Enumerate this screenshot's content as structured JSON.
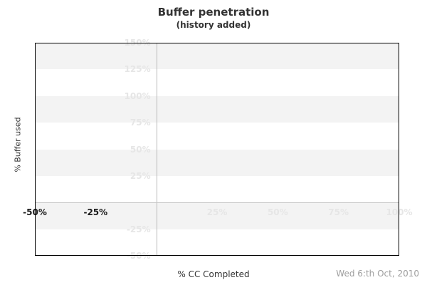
{
  "chart_data": {
    "type": "line",
    "title": "Buffer penetration",
    "subtitle": "(history added)",
    "xlabel": "% CC Completed",
    "ylabel": "% Buffer used",
    "date_annotation": "Wed 6:th Oct, 2010",
    "xlim": [
      -50,
      100
    ],
    "ylim": [
      -50,
      150
    ],
    "band_step": 25,
    "grid": "alternating horizontal bands every 25%, gray band at top of range",
    "axes_cross_at_origin": true,
    "legend_position": "none",
    "series": [],
    "x_ticks": [
      {
        "value": -50,
        "label": "-50%",
        "emphasis": "dark"
      },
      {
        "value": -25,
        "label": "-25%",
        "emphasis": "dark"
      },
      {
        "value": 25,
        "label": "25%",
        "emphasis": "light"
      },
      {
        "value": 50,
        "label": "50%",
        "emphasis": "light"
      },
      {
        "value": 75,
        "label": "75%",
        "emphasis": "light"
      },
      {
        "value": 100,
        "label": "100%",
        "emphasis": "light"
      }
    ],
    "y_ticks": [
      {
        "value": 150,
        "label": "150%"
      },
      {
        "value": 125,
        "label": "125%"
      },
      {
        "value": 100,
        "label": "100%"
      },
      {
        "value": 75,
        "label": "75%"
      },
      {
        "value": 50,
        "label": "50%"
      },
      {
        "value": 25,
        "label": "25%"
      },
      {
        "value": -25,
        "label": "-25%"
      },
      {
        "value": -50,
        "label": "-50%"
      }
    ]
  },
  "colors": {
    "background": "#ffffff",
    "band_gray": "#f3f3f3",
    "band_white": "#ffffff",
    "tick_light": "#e6e6e6",
    "tick_dark": "#1a1a1a",
    "axis_line_vertical": "#b9b9b9",
    "axis_line_horizontal": "#c6c6c6",
    "plot_border": "#000000",
    "text_dark": "#333333",
    "date_gray": "#9e9e9e"
  }
}
